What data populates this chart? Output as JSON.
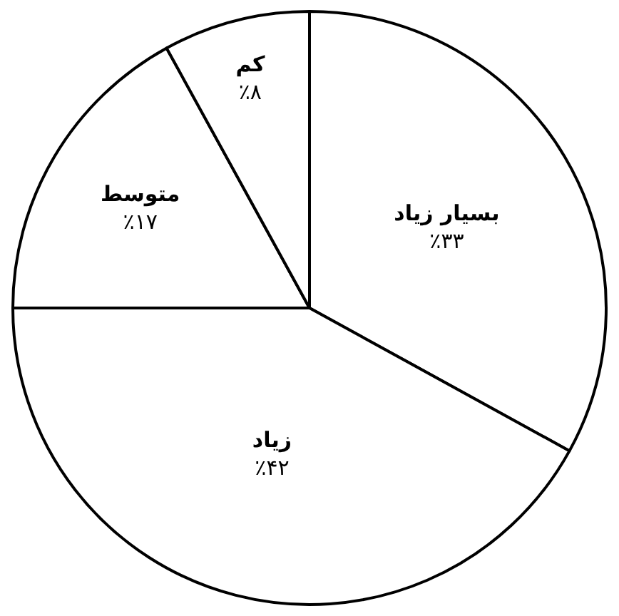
{
  "chart_data": {
    "type": "pie",
    "categories": [
      "بسیار زیاد",
      "زیاد",
      "متوسط",
      "کم"
    ],
    "values": [
      33,
      42,
      17,
      8
    ],
    "value_labels": [
      "٪۳۳",
      "٪۴۲",
      "٪۱۷",
      "٪۸"
    ],
    "colors": [
      "#ffffff",
      "#ffffff",
      "#ffffff",
      "#ffffff"
    ],
    "legend": false
  }
}
